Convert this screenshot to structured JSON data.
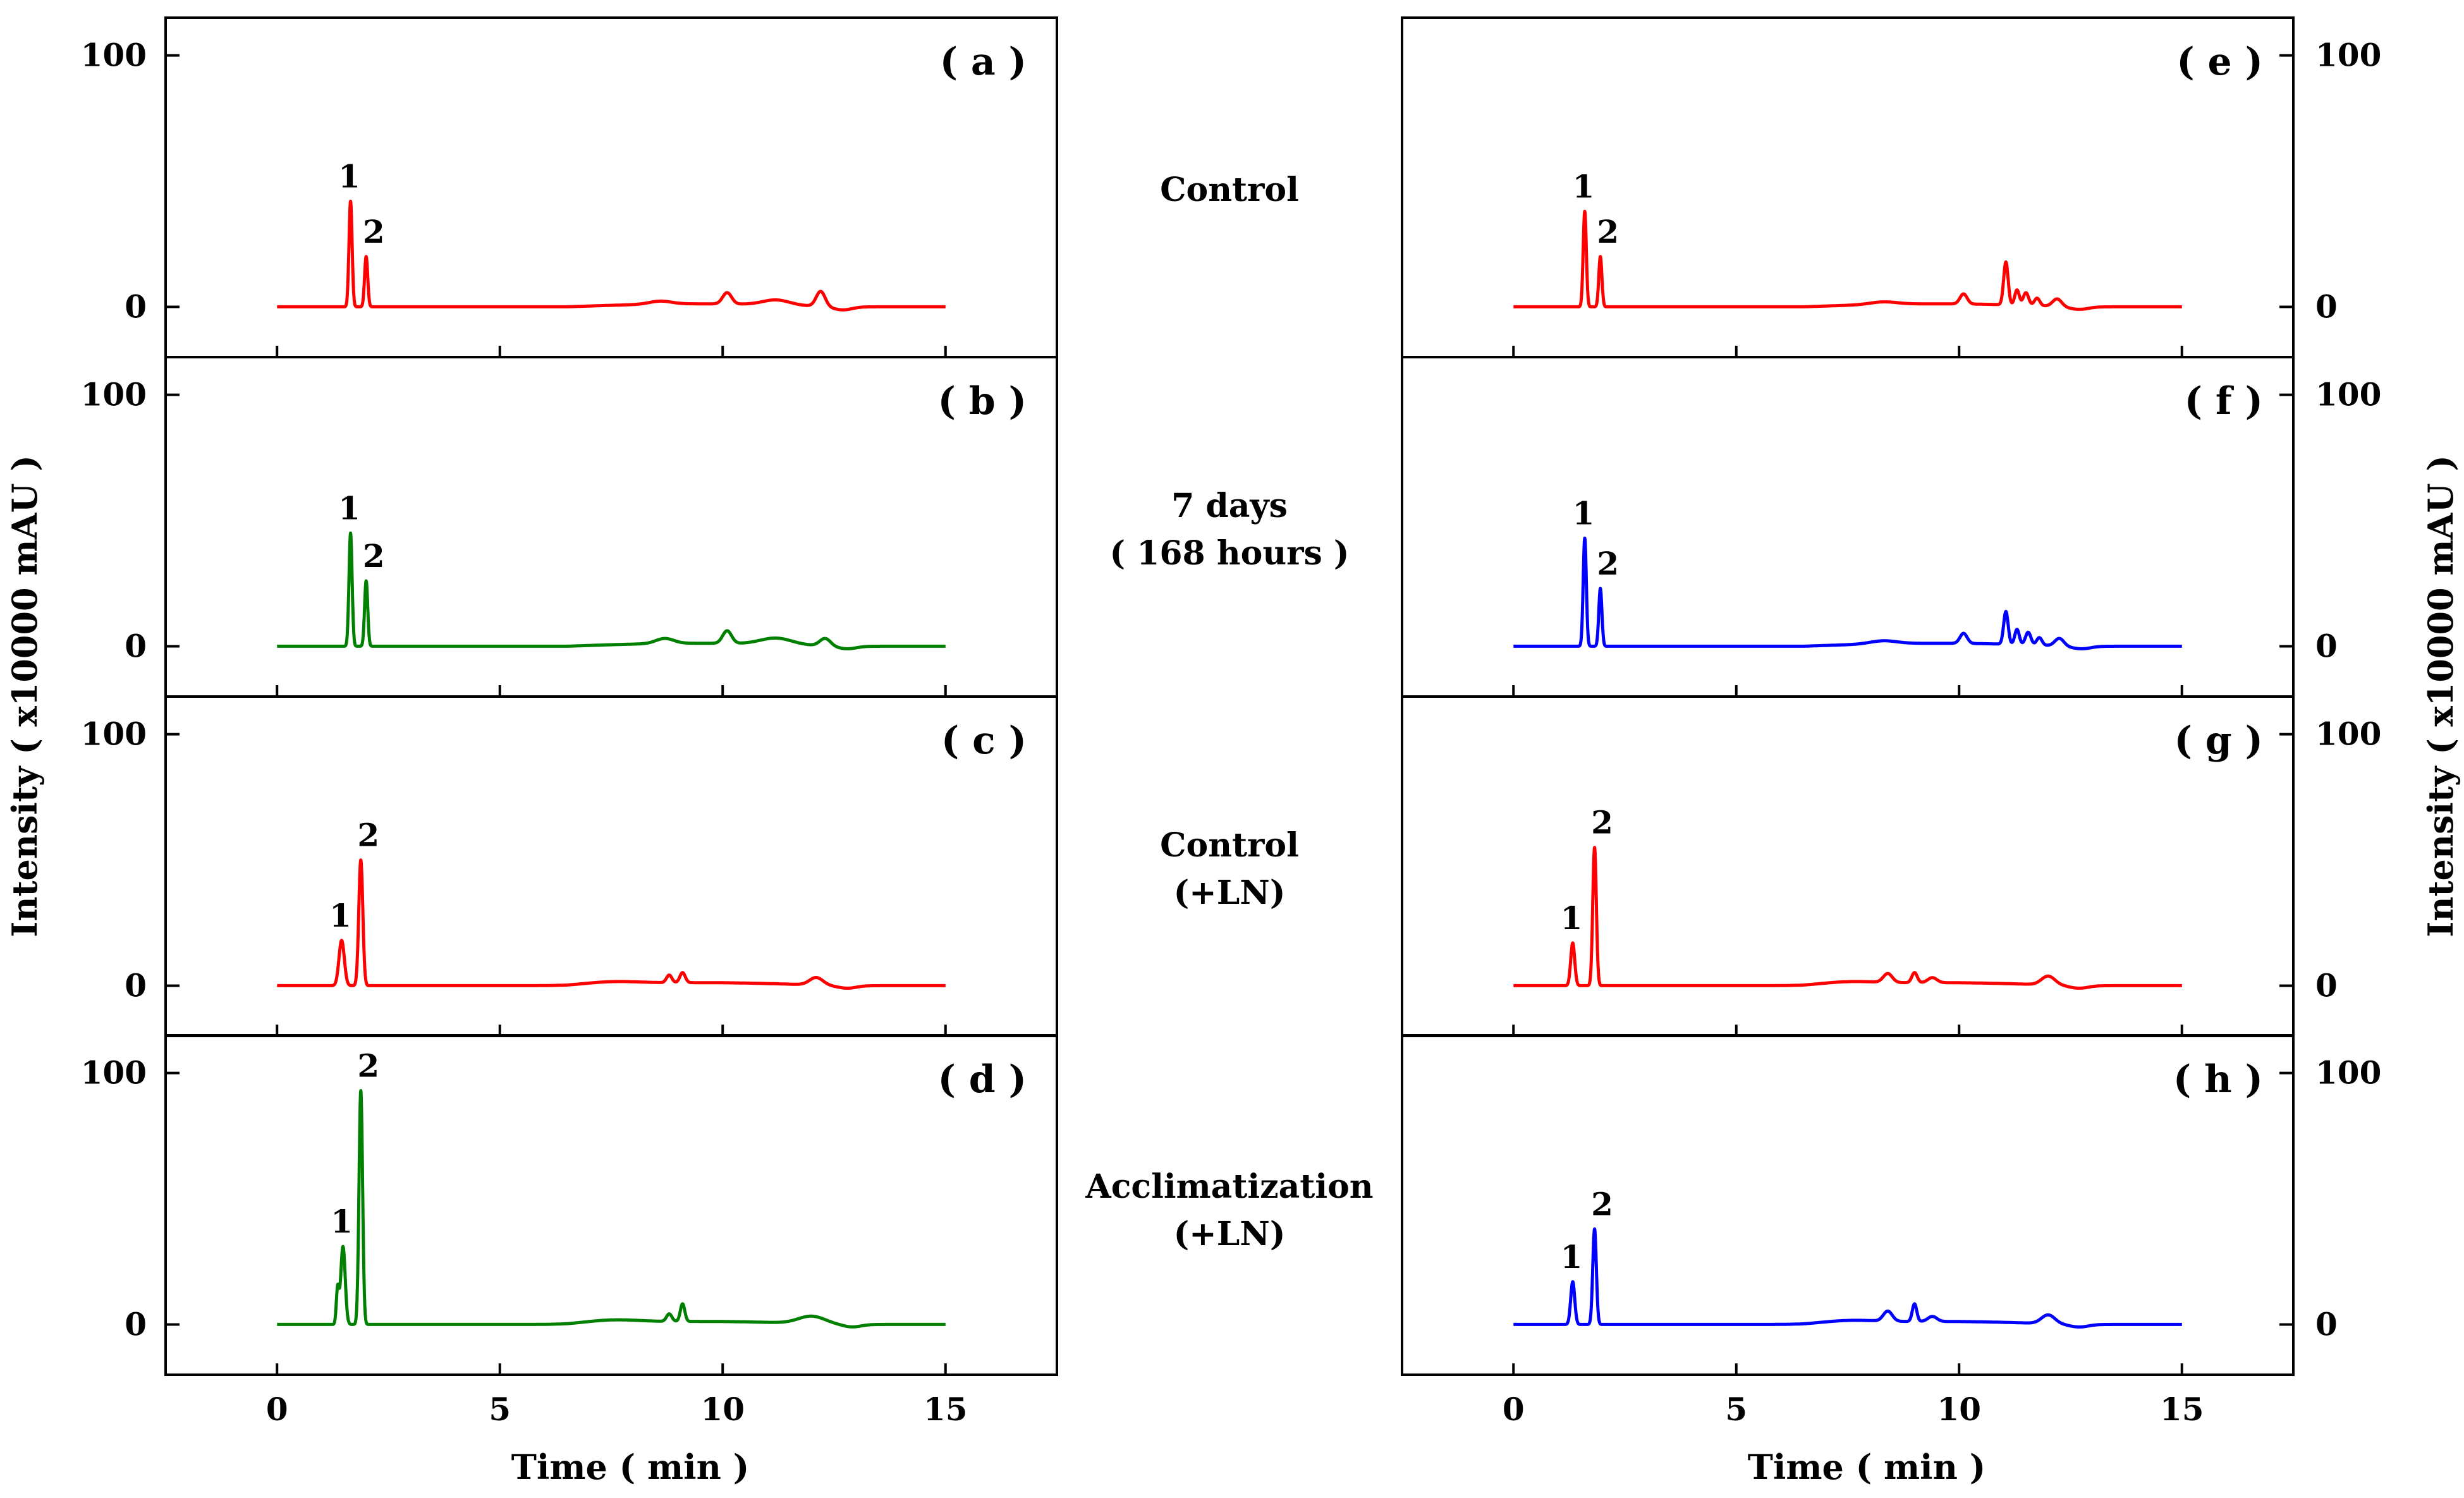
{
  "chart_data": {
    "type": "line",
    "title": "",
    "xlabel": "Time ( min )",
    "ylabel": "Intensity ( x10000 mAU )",
    "xlim": [
      -2.5,
      17.5
    ],
    "ylim": [
      -20,
      115
    ],
    "x_ticks": [
      "0",
      "5",
      "10",
      "15"
    ],
    "y_ticks": [
      "0",
      "100"
    ],
    "conditions": [
      {
        "row": 0,
        "lines": [
          "Control"
        ]
      },
      {
        "row": 1,
        "lines": [
          "7 days",
          "( 168 hours )"
        ]
      },
      {
        "row": 2,
        "lines": [
          "Control",
          "(+LN)"
        ]
      },
      {
        "row": 3,
        "lines": [
          "Acclimatization",
          "(+LN)"
        ]
      }
    ],
    "panels": [
      {
        "id": "a",
        "label": "( a )",
        "column": "left",
        "row": 0,
        "color": "#ff0000",
        "peaks": [
          {
            "n": "1",
            "rt": 1.65,
            "h": 42,
            "w": 0.035
          },
          {
            "n": "2",
            "rt": 2.0,
            "h": 20,
            "w": 0.035
          }
        ],
        "minor": [
          {
            "rt": 8.6,
            "h": 1.2,
            "w": 0.25
          },
          {
            "rt": 10.1,
            "h": 4.5,
            "w": 0.1
          },
          {
            "rt": 11.2,
            "h": 2.0,
            "w": 0.3
          },
          {
            "rt": 12.2,
            "h": 6.0,
            "w": 0.1
          },
          {
            "rt": 12.7,
            "h": -1.2,
            "w": 0.2
          }
        ]
      },
      {
        "id": "b",
        "label": "( b )",
        "column": "left",
        "row": 1,
        "color": "#008000",
        "peaks": [
          {
            "n": "1",
            "rt": 1.65,
            "h": 45,
            "w": 0.035
          },
          {
            "n": "2",
            "rt": 2.0,
            "h": 26,
            "w": 0.035
          }
        ],
        "minor": [
          {
            "rt": 8.7,
            "h": 2.0,
            "w": 0.2
          },
          {
            "rt": 10.1,
            "h": 5.0,
            "w": 0.1
          },
          {
            "rt": 11.2,
            "h": 2.5,
            "w": 0.35
          },
          {
            "rt": 12.3,
            "h": 3.0,
            "w": 0.12
          },
          {
            "rt": 12.8,
            "h": -1.0,
            "w": 0.2
          }
        ]
      },
      {
        "id": "c",
        "label": "( c )",
        "column": "left",
        "row": 2,
        "color": "#ff0000",
        "peaks": [
          {
            "n": "1",
            "rt": 1.45,
            "h": 18,
            "w": 0.06
          },
          {
            "n": "2",
            "rt": 1.88,
            "h": 50,
            "w": 0.045
          }
        ],
        "minor": [
          {
            "rt": 7.5,
            "h": 1.0,
            "w": 0.6
          },
          {
            "rt": 8.8,
            "h": 3.0,
            "w": 0.06
          },
          {
            "rt": 9.1,
            "h": 4.0,
            "w": 0.06
          },
          {
            "rt": 12.1,
            "h": 3.0,
            "w": 0.15
          },
          {
            "rt": 12.8,
            "h": -1.0,
            "w": 0.2
          }
        ]
      },
      {
        "id": "d",
        "label": "( d )",
        "column": "left",
        "row": 3,
        "color": "#008000",
        "peaks": [
          {
            "n": "1",
            "rt": 1.48,
            "h": 31,
            "w": 0.05
          },
          {
            "n": "2",
            "rt": 1.88,
            "h": 93,
            "w": 0.04
          }
        ],
        "minor": [
          {
            "rt": 1.36,
            "h": 14,
            "w": 0.03
          },
          {
            "rt": 7.5,
            "h": 1.2,
            "w": 0.6
          },
          {
            "rt": 8.8,
            "h": 3.0,
            "w": 0.06
          },
          {
            "rt": 9.1,
            "h": 7.0,
            "w": 0.05
          },
          {
            "rt": 12.0,
            "h": 3.0,
            "w": 0.3
          },
          {
            "rt": 12.9,
            "h": -1.0,
            "w": 0.2
          }
        ]
      },
      {
        "id": "e",
        "label": "( e )",
        "column": "right",
        "row": 0,
        "color": "#ff0000",
        "peaks": [
          {
            "n": "1",
            "rt": 1.6,
            "h": 38,
            "w": 0.035
          },
          {
            "n": "2",
            "rt": 1.95,
            "h": 20,
            "w": 0.035
          }
        ],
        "minor": [
          {
            "rt": 8.3,
            "h": 1.0,
            "w": 0.3
          },
          {
            "rt": 10.1,
            "h": 4.0,
            "w": 0.08
          },
          {
            "rt": 11.05,
            "h": 17.0,
            "w": 0.05
          },
          {
            "rt": 11.3,
            "h": 6.0,
            "w": 0.05
          },
          {
            "rt": 11.5,
            "h": 5.0,
            "w": 0.06
          },
          {
            "rt": 11.75,
            "h": 3.0,
            "w": 0.06
          },
          {
            "rt": 12.2,
            "h": 3.0,
            "w": 0.1
          },
          {
            "rt": 12.7,
            "h": -1.0,
            "w": 0.2
          }
        ]
      },
      {
        "id": "f",
        "label": "( f )",
        "column": "right",
        "row": 1,
        "color": "#0000ff",
        "peaks": [
          {
            "n": "1",
            "rt": 1.6,
            "h": 43,
            "w": 0.035
          },
          {
            "n": "2",
            "rt": 1.95,
            "h": 23,
            "w": 0.035
          }
        ],
        "minor": [
          {
            "rt": 8.3,
            "h": 1.2,
            "w": 0.3
          },
          {
            "rt": 10.1,
            "h": 4.0,
            "w": 0.08
          },
          {
            "rt": 11.05,
            "h": 13.0,
            "w": 0.05
          },
          {
            "rt": 11.3,
            "h": 6.0,
            "w": 0.05
          },
          {
            "rt": 11.55,
            "h": 5.0,
            "w": 0.06
          },
          {
            "rt": 11.8,
            "h": 3.0,
            "w": 0.06
          },
          {
            "rt": 12.25,
            "h": 3.0,
            "w": 0.1
          },
          {
            "rt": 12.75,
            "h": -1.0,
            "w": 0.2
          }
        ]
      },
      {
        "id": "g",
        "label": "( g )",
        "column": "right",
        "row": 2,
        "color": "#ff0000",
        "peaks": [
          {
            "n": "1",
            "rt": 1.33,
            "h": 17,
            "w": 0.045
          },
          {
            "n": "2",
            "rt": 1.82,
            "h": 55,
            "w": 0.04
          }
        ],
        "minor": [
          {
            "rt": 7.5,
            "h": 1.0,
            "w": 0.6
          },
          {
            "rt": 8.4,
            "h": 3.5,
            "w": 0.1
          },
          {
            "rt": 9.0,
            "h": 4.0,
            "w": 0.06
          },
          {
            "rt": 9.4,
            "h": 2.0,
            "w": 0.1
          },
          {
            "rt": 12.0,
            "h": 3.5,
            "w": 0.15
          },
          {
            "rt": 12.7,
            "h": -1.0,
            "w": 0.2
          }
        ]
      },
      {
        "id": "h",
        "label": "( h )",
        "column": "right",
        "row": 3,
        "color": "#0000ff",
        "peaks": [
          {
            "n": "1",
            "rt": 1.33,
            "h": 17,
            "w": 0.045
          },
          {
            "n": "2",
            "rt": 1.82,
            "h": 38,
            "w": 0.04
          }
        ],
        "minor": [
          {
            "rt": 7.5,
            "h": 1.0,
            "w": 0.6
          },
          {
            "rt": 8.4,
            "h": 4.0,
            "w": 0.1
          },
          {
            "rt": 9.0,
            "h": 7.0,
            "w": 0.05
          },
          {
            "rt": 9.4,
            "h": 2.0,
            "w": 0.1
          },
          {
            "rt": 12.0,
            "h": 3.5,
            "w": 0.15
          },
          {
            "rt": 12.7,
            "h": -1.0,
            "w": 0.2
          }
        ]
      }
    ]
  }
}
